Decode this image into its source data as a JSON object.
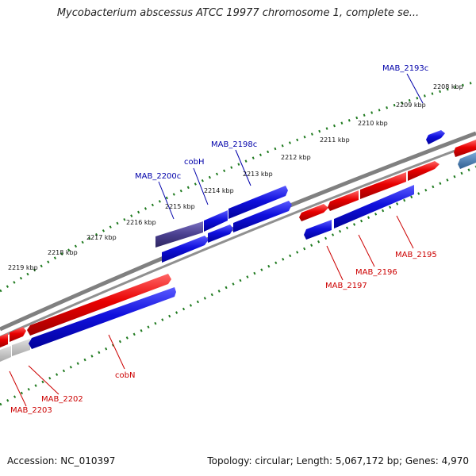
{
  "title": "Mycobacterium abscessus ATCC 19977 chromosome 1, complete se...",
  "footer": {
    "accession": "Accession: NC_010397",
    "summary": "Topology: circular; Length: 5,067,172 bp; Genes: 4,970"
  },
  "colors": {
    "forward_gene": "#e80000",
    "reverse_gene": "#1010dd",
    "selected_gene": "#4a3f8f",
    "grey_gene": "#c0c0c0",
    "steel_gene": "#4a7fb0",
    "backbone": "#808080",
    "ticks": "#1f7a1f",
    "label_forward": "#cc0000",
    "label_reverse": "#0000aa"
  },
  "scale_labels": [
    "2208 kbp",
    "2209 kbp",
    "2210 kbp",
    "2211 kbp",
    "2212 kbp",
    "2213 kbp",
    "2214 kbp",
    "2215 kbp",
    "2216 kbp",
    "2217 kbp",
    "2218 kbp",
    "2219 kbp"
  ],
  "gene_labels": {
    "top": [
      "MAB_2193c",
      "MAB_2198c",
      "cobH",
      "MAB_2200c"
    ],
    "bottom": [
      "MAB_2195",
      "MAB_2196",
      "MAB_2197",
      "cobN",
      "MAB_2202",
      "MAB_2203"
    ]
  }
}
